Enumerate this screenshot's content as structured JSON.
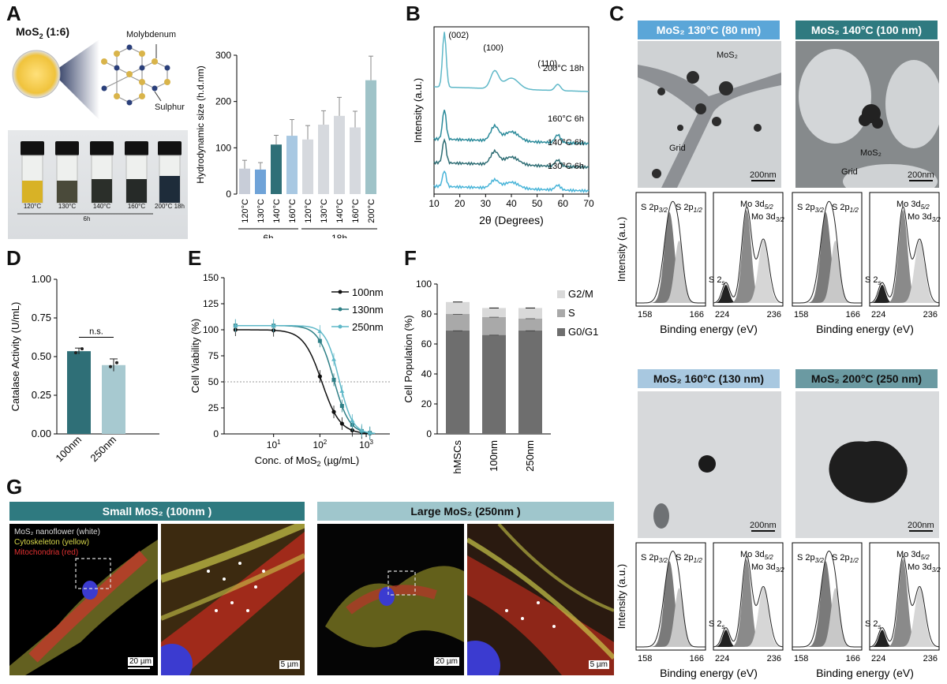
{
  "panel_labels": {
    "A": "A",
    "B": "B",
    "C": "C",
    "D": "D",
    "E": "E",
    "F": "F",
    "G": "G"
  },
  "panelA": {
    "title": "MoS",
    "title_sub": "2",
    "title_ratio": " (1:6)",
    "mo_label": "Molybdenum",
    "s_label": "Sulphur",
    "vials": [
      "120°C",
      "130°C",
      "140°C",
      "160°C",
      "200°C 18h"
    ],
    "vials_group": "6h",
    "colors": {
      "vial1": "#d8b226",
      "vial_dark": "#2b2f2a"
    }
  },
  "chart_A": {
    "type": "bar",
    "ylabel": "Hydrodynamic size (h.d.nm)",
    "ylim": [
      0,
      300
    ],
    "yticks": [
      "0",
      "100",
      "200",
      "300"
    ],
    "categories": [
      "120°C",
      "130°C",
      "140°C",
      "160°C",
      "120°C",
      "130°C",
      "140°C",
      "160°C",
      "200°C"
    ],
    "values": [
      55,
      53,
      107,
      126,
      118,
      150,
      169,
      144,
      246
    ],
    "errors": [
      18,
      15,
      20,
      35,
      30,
      30,
      40,
      35,
      52
    ],
    "colors": [
      "#c8cdd8",
      "#6fa3d8",
      "#2f6f77",
      "#a8c8e2",
      "#d6d9de",
      "#d6d9de",
      "#d6d9de",
      "#d6d9de",
      "#9fc3c8"
    ],
    "groups": [
      {
        "label": "6h",
        "from": 0,
        "to": 3
      },
      {
        "label": "18h",
        "from": 4,
        "to": 8
      }
    ]
  },
  "chart_B": {
    "type": "line",
    "xlabel": "2θ (Degrees)",
    "ylabel": "Intensity (a.u.)",
    "xlim": [
      10,
      70
    ],
    "xticks": [
      "10",
      "20",
      "30",
      "40",
      "50",
      "60",
      "70"
    ],
    "peaks": [
      "(002)",
      "(100)",
      "(110)"
    ],
    "series": [
      {
        "name": "200°C 18h",
        "color": "#5fb8c8"
      },
      {
        "name": "160°C 6h",
        "color": "#2a8a9a"
      },
      {
        "name": "140°C 6h",
        "color": "#2e6d74"
      },
      {
        "name": "130°C 6h",
        "color": "#48b4d8"
      }
    ]
  },
  "panelC": {
    "banner1": "MoS₂ 130°C (80 nm)",
    "banner2": "MoS₂ 140°C (100 nm)",
    "banner3": "MoS₂ 160°C (130 nm)",
    "banner4": "MoS₂ 200°C (250 nm)",
    "mos2_label": "MoS₂",
    "grid_label": "Grid",
    "scale": "200nm",
    "xps_ylabel": "Intensity (a.u.)",
    "xps_xlabel": "Binding energy (eV)",
    "s_ticks": [
      "158",
      "166"
    ],
    "mo_ticks": [
      "224",
      "236"
    ],
    "s2p32": "S 2p",
    "s2p32_sub": "3/2",
    "s2p12": "S 2p",
    "s2p12_sub": "1/2",
    "mo3d52": "Mo 3d",
    "mo3d52_sub": "5/2",
    "mo3d32": "Mo 3d",
    "mo3d32_sub": "3/2",
    "s2s": "S 2",
    "s2s_sub": "s",
    "colors": {
      "banner_light": "#5ba6d8",
      "banner_teal": "#2f7a80",
      "banner_pale": "#a8c8e0",
      "banner_grey": "#6b9aa2"
    }
  },
  "chart_D": {
    "type": "bar",
    "ylabel": "Catalase Activity (U/mL)",
    "ylim": [
      0,
      1
    ],
    "yticks": [
      "0.00",
      "0.25",
      "0.50",
      "0.75",
      "1.00"
    ],
    "categories": [
      "100nm",
      "250nm"
    ],
    "values": [
      0.535,
      0.445
    ],
    "errors": [
      0.02,
      0.04
    ],
    "colors": [
      "#2f6f77",
      "#a7c9d0"
    ],
    "annotation": "n.s."
  },
  "chart_E": {
    "type": "line",
    "xlabel": "Conc. of MoS",
    "xlabel_sub": "2",
    "xlabel_unit": " (µg/mL)",
    "ylabel": "Cell Viability (%)",
    "ylim": [
      0,
      150
    ],
    "yticks": [
      "0",
      "25",
      "50",
      "75",
      "100",
      "125",
      "150"
    ],
    "xticks": [
      "10",
      "10",
      "10"
    ],
    "xtick_exp": [
      "1",
      "2",
      "3"
    ],
    "series": [
      {
        "name": "100nm",
        "color": "#111111",
        "ic50": 110
      },
      {
        "name": "130nm",
        "color": "#2e7f86",
        "ic50": 200
      },
      {
        "name": "250nm",
        "color": "#5fb8c8",
        "ic50": 260
      }
    ]
  },
  "chart_F": {
    "type": "bar",
    "ylabel": "Cell Population (%)",
    "ylim": [
      0,
      100
    ],
    "yticks": [
      "0",
      "20",
      "40",
      "60",
      "80",
      "100"
    ],
    "categories": [
      "hMSCs",
      "100nm",
      "250nm"
    ],
    "series": [
      {
        "name": "G0/G1",
        "values": [
          69,
          66,
          69
        ],
        "color": "#6e6e6e"
      },
      {
        "name": "S",
        "values": [
          11,
          12,
          8
        ],
        "color": "#a9a9a9"
      },
      {
        "name": "G2/M",
        "values": [
          8,
          6,
          7
        ],
        "color": "#d9d9d9"
      }
    ]
  },
  "panelG": {
    "banner_small": "Small MoS₂ (100nm )",
    "banner_large": "Large MoS₂ (250nm )",
    "legend1": "MoS₂ nanoflower (white)",
    "legend2": "Cytoskeleton (yellow)",
    "legend3": "Mitochondria (red)",
    "scale_20": "20 µm",
    "scale_5": "5 µm",
    "colors": {
      "banner_small": "#2f7a80",
      "banner_large": "#9fc6cc",
      "legend1": "#dddddd",
      "legend2": "#d8d84a",
      "legend3": "#e03030"
    }
  }
}
